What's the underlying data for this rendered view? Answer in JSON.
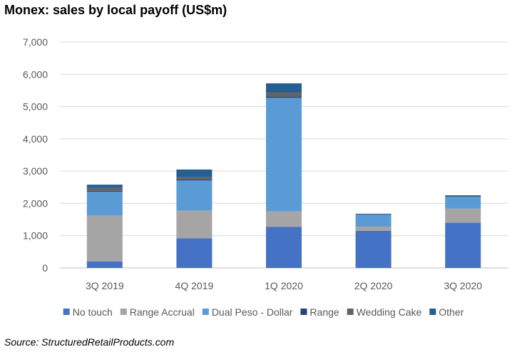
{
  "title": "Monex: sales by local payoff (US$m)",
  "source": "Source: StructuredRetailProducts.com",
  "chart_data": {
    "type": "bar",
    "stacked": true,
    "title": "Monex: sales by local payoff (US$m)",
    "xlabel": "",
    "ylabel": "",
    "categories": [
      "3Q 2019",
      "4Q 2019",
      "1Q 2020",
      "2Q 2020",
      "3Q 2020"
    ],
    "ylim": [
      0,
      7000
    ],
    "yticks": [
      0,
      1000,
      2000,
      3000,
      4000,
      5000,
      6000,
      7000
    ],
    "ytick_labels": [
      "0",
      "1,000",
      "2,000",
      "3,000",
      "4,000",
      "5,000",
      "6,000",
      "7,000"
    ],
    "grid": true,
    "legend_position": "bottom",
    "series": [
      {
        "name": "No touch",
        "color": "#4472C4",
        "values": [
          200,
          920,
          1270,
          1150,
          1400
        ]
      },
      {
        "name": "Range Accrual",
        "color": "#A5A5A5",
        "values": [
          1420,
          860,
          480,
          130,
          440
        ]
      },
      {
        "name": "Dual Peso - Dollar",
        "color": "#5B9BD5",
        "values": [
          740,
          930,
          3520,
          370,
          370
        ]
      },
      {
        "name": "Range",
        "color": "#264478",
        "values": [
          30,
          30,
          30,
          10,
          20
        ]
      },
      {
        "name": "Wedding Cake",
        "color": "#636363",
        "values": [
          90,
          70,
          130,
          0,
          0
        ]
      },
      {
        "name": "Other",
        "color": "#255E91",
        "values": [
          100,
          240,
          290,
          20,
          20
        ]
      }
    ]
  }
}
